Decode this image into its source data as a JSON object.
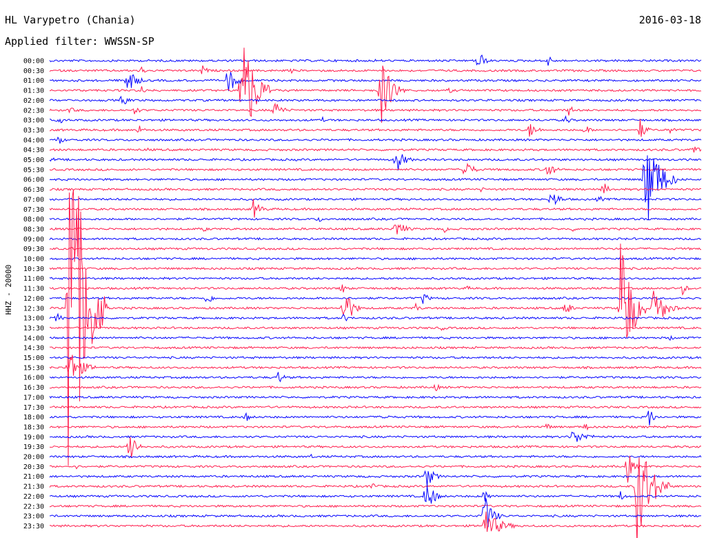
{
  "header": {
    "station": "HL Varypetro (Chania)",
    "date": "2016-03-18",
    "filter": "Applied filter: WWSSN-SP"
  },
  "chart_data": {
    "type": "line",
    "title": "HL Varypetro (Chania)",
    "ylabel": "HHZ - 20000",
    "series_colors": [
      "#0000ff",
      "#ff1a4b"
    ],
    "categories": [
      "00:00",
      "00:30",
      "01:00",
      "01:30",
      "02:00",
      "02:30",
      "03:00",
      "03:30",
      "04:00",
      "04:30",
      "05:00",
      "05:30",
      "06:00",
      "06:30",
      "07:00",
      "07:30",
      "08:00",
      "08:30",
      "09:00",
      "09:30",
      "10:00",
      "10:30",
      "11:00",
      "11:30",
      "12:00",
      "12:30",
      "13:00",
      "13:30",
      "14:00",
      "14:30",
      "15:00",
      "15:30",
      "16:00",
      "16:30",
      "17:00",
      "17:30",
      "18:00",
      "18:30",
      "19:00",
      "19:30",
      "20:00",
      "20:30",
      "21:00",
      "21:30",
      "22:00",
      "22:30",
      "23:00",
      "23:30"
    ],
    "events": [
      {
        "row": 0,
        "x": 0.655,
        "amp": 24,
        "dur": 0.022
      },
      {
        "row": 0,
        "x": 0.762,
        "amp": 12,
        "dur": 0.02
      },
      {
        "row": 0,
        "x": 0.5,
        "amp": 5,
        "dur": 0.01
      },
      {
        "row": 0,
        "x": 0.6,
        "amp": 4,
        "dur": 0.01
      },
      {
        "row": 1,
        "x": 0.138,
        "amp": 9,
        "dur": 0.02
      },
      {
        "row": 1,
        "x": 0.233,
        "amp": 10,
        "dur": 0.02
      },
      {
        "row": 1,
        "x": 0.37,
        "amp": 5,
        "dur": 0.015
      },
      {
        "row": 2,
        "x": 0.118,
        "amp": 28,
        "dur": 0.03
      },
      {
        "row": 2,
        "x": 0.272,
        "amp": 26,
        "dur": 0.03
      },
      {
        "row": 3,
        "x": 0.293,
        "amp": 120,
        "dur": 0.045
      },
      {
        "row": 3,
        "x": 0.506,
        "amp": 60,
        "dur": 0.04
      },
      {
        "row": 3,
        "x": 0.612,
        "amp": 6,
        "dur": 0.015
      },
      {
        "row": 3,
        "x": 0.14,
        "amp": 8,
        "dur": 0.02
      },
      {
        "row": 4,
        "x": 0.11,
        "amp": 14,
        "dur": 0.02
      },
      {
        "row": 5,
        "x": 0.13,
        "amp": 8,
        "dur": 0.02
      },
      {
        "row": 5,
        "x": 0.343,
        "amp": 18,
        "dur": 0.03
      },
      {
        "row": 5,
        "x": 0.795,
        "amp": 10,
        "dur": 0.02
      },
      {
        "row": 5,
        "x": 0.03,
        "amp": 4,
        "dur": 0.05
      },
      {
        "row": 6,
        "x": 0.013,
        "amp": 8,
        "dur": 0.02
      },
      {
        "row": 6,
        "x": 0.418,
        "amp": 5,
        "dur": 0.01
      },
      {
        "row": 6,
        "x": 0.79,
        "amp": 8,
        "dur": 0.02
      },
      {
        "row": 7,
        "x": 0.135,
        "amp": 10,
        "dur": 0.02
      },
      {
        "row": 7,
        "x": 0.735,
        "amp": 14,
        "dur": 0.03
      },
      {
        "row": 7,
        "x": 0.82,
        "amp": 10,
        "dur": 0.02
      },
      {
        "row": 7,
        "x": 0.905,
        "amp": 20,
        "dur": 0.02
      },
      {
        "row": 7,
        "x": 0.95,
        "amp": 8,
        "dur": 0.02
      },
      {
        "row": 8,
        "x": 0.012,
        "amp": 10,
        "dur": 0.02
      },
      {
        "row": 9,
        "x": 0.985,
        "amp": 12,
        "dur": 0.02
      },
      {
        "row": 9,
        "x": 0.15,
        "amp": 4,
        "dur": 0.01
      },
      {
        "row": 10,
        "x": 0.002,
        "amp": 6,
        "dur": 0.015
      },
      {
        "row": 10,
        "x": 0.53,
        "amp": 24,
        "dur": 0.03
      },
      {
        "row": 11,
        "x": 0.634,
        "amp": 20,
        "dur": 0.03
      },
      {
        "row": 11,
        "x": 0.762,
        "amp": 14,
        "dur": 0.03
      },
      {
        "row": 12,
        "x": 0.912,
        "amp": 90,
        "dur": 0.05
      },
      {
        "row": 13,
        "x": 0.848,
        "amp": 14,
        "dur": 0.02
      },
      {
        "row": 13,
        "x": 0.66,
        "amp": 5,
        "dur": 0.02
      },
      {
        "row": 14,
        "x": 0.768,
        "amp": 18,
        "dur": 0.03
      },
      {
        "row": 14,
        "x": 0.84,
        "amp": 8,
        "dur": 0.02
      },
      {
        "row": 15,
        "x": 0.312,
        "amp": 16,
        "dur": 0.03
      },
      {
        "row": 16,
        "x": 0.41,
        "amp": 6,
        "dur": 0.03
      },
      {
        "row": 17,
        "x": 0.53,
        "amp": 20,
        "dur": 0.03
      },
      {
        "row": 17,
        "x": 0.236,
        "amp": 6,
        "dur": 0.015
      },
      {
        "row": 17,
        "x": 0.605,
        "amp": 6,
        "dur": 0.02
      },
      {
        "row": 17,
        "x": 0.8,
        "amp": 5,
        "dur": 0.02
      },
      {
        "row": 19,
        "x": 0.03,
        "amp": 3,
        "dur": 0.08
      },
      {
        "row": 23,
        "x": 0.446,
        "amp": 12,
        "dur": 0.02
      },
      {
        "row": 23,
        "x": 0.97,
        "amp": 10,
        "dur": 0.02
      },
      {
        "row": 23,
        "x": 0.64,
        "amp": 5,
        "dur": 0.02
      },
      {
        "row": 24,
        "x": 0.24,
        "amp": 14,
        "dur": 0.02
      },
      {
        "row": 24,
        "x": 0.572,
        "amp": 12,
        "dur": 0.02
      },
      {
        "row": 25,
        "x": 0.028,
        "amp": 360,
        "dur": 0.06
      },
      {
        "row": 25,
        "x": 0.45,
        "amp": 40,
        "dur": 0.03
      },
      {
        "row": 25,
        "x": 0.56,
        "amp": 8,
        "dur": 0.02
      },
      {
        "row": 25,
        "x": 0.79,
        "amp": 16,
        "dur": 0.02
      },
      {
        "row": 25,
        "x": 0.875,
        "amp": 140,
        "dur": 0.04
      },
      {
        "row": 25,
        "x": 0.925,
        "amp": 40,
        "dur": 0.04
      },
      {
        "row": 26,
        "x": 0.01,
        "amp": 10,
        "dur": 0.02
      },
      {
        "row": 26,
        "x": 0.45,
        "amp": 8,
        "dur": 0.02
      },
      {
        "row": 27,
        "x": 0.6,
        "amp": 5,
        "dur": 0.02
      },
      {
        "row": 28,
        "x": 0.95,
        "amp": 5,
        "dur": 0.02
      },
      {
        "row": 31,
        "x": 0.028,
        "amp": 30,
        "dur": 0.05
      },
      {
        "row": 32,
        "x": 0.35,
        "amp": 12,
        "dur": 0.02
      },
      {
        "row": 33,
        "x": 0.59,
        "amp": 8,
        "dur": 0.02
      },
      {
        "row": 36,
        "x": 0.3,
        "amp": 9,
        "dur": 0.02
      },
      {
        "row": 36,
        "x": 0.51,
        "amp": 9,
        "dur": 0.02
      },
      {
        "row": 36,
        "x": 0.918,
        "amp": 18,
        "dur": 0.02
      },
      {
        "row": 37,
        "x": 0.76,
        "amp": 8,
        "dur": 0.02
      },
      {
        "row": 37,
        "x": 0.82,
        "amp": 8,
        "dur": 0.02
      },
      {
        "row": 38,
        "x": 0.8,
        "amp": 12,
        "dur": 0.06
      },
      {
        "row": 39,
        "x": 0.122,
        "amp": 44,
        "dur": 0.02
      },
      {
        "row": 40,
        "x": 0.4,
        "amp": 4,
        "dur": 0.02
      },
      {
        "row": 41,
        "x": 0.885,
        "amp": 30,
        "dur": 0.02
      },
      {
        "row": 41,
        "x": 0.04,
        "amp": 4,
        "dur": 0.02
      },
      {
        "row": 42,
        "x": 0.576,
        "amp": 20,
        "dur": 0.03
      },
      {
        "row": 43,
        "x": 0.492,
        "amp": 10,
        "dur": 0.02
      },
      {
        "row": 43,
        "x": 0.9,
        "amp": 100,
        "dur": 0.05
      },
      {
        "row": 44,
        "x": 0.576,
        "amp": 30,
        "dur": 0.03
      },
      {
        "row": 44,
        "x": 0.665,
        "amp": 14,
        "dur": 0.02
      },
      {
        "row": 44,
        "x": 0.875,
        "amp": 8,
        "dur": 0.02
      },
      {
        "row": 46,
        "x": 0.665,
        "amp": 40,
        "dur": 0.03
      },
      {
        "row": 47,
        "x": 0.665,
        "amp": 26,
        "dur": 0.06
      }
    ]
  }
}
